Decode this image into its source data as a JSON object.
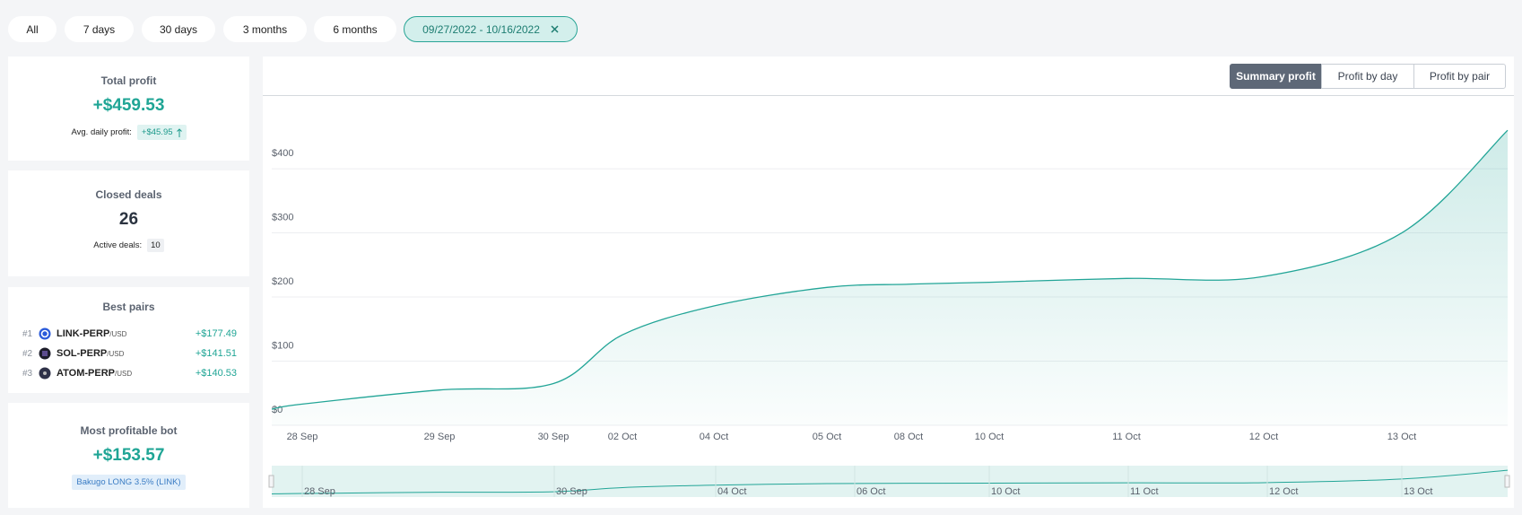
{
  "filters": [
    "All",
    "7 days",
    "30 days",
    "3 months",
    "6 months"
  ],
  "active_range": "09/27/2022 - 10/16/2022",
  "total_profit": {
    "title": "Total profit",
    "value": "+$459.53",
    "avg_label": "Avg. daily profit:",
    "avg_value": "+$45.95"
  },
  "closed_deals": {
    "title": "Closed deals",
    "value": "26",
    "active_label": "Active deals:",
    "active_value": "10"
  },
  "best_pairs": {
    "title": "Best pairs",
    "rows": [
      {
        "rank": "#1",
        "pair": "LINK-PERP",
        "quote": "/USD",
        "profit": "+$177.49"
      },
      {
        "rank": "#2",
        "pair": "SOL-PERP",
        "quote": "/USD",
        "profit": "+$141.51"
      },
      {
        "rank": "#3",
        "pair": "ATOM-PERP",
        "quote": "/USD",
        "profit": "+$140.53"
      }
    ]
  },
  "best_bot": {
    "title": "Most profitable bot",
    "value": "+$153.57",
    "name": "Bakugo LONG 3.5% (LINK)"
  },
  "tabs": [
    "Summary profit",
    "Profit by day",
    "Profit by pair"
  ],
  "chart_data": {
    "type": "area",
    "categories": [
      null,
      "28 Sep",
      "29 Sep",
      "30 Sep",
      "02 Oct",
      "04 Oct",
      "05 Oct",
      "08 Oct",
      "10 Oct",
      "11 Oct",
      "12 Oct",
      "13 Oct",
      null
    ],
    "values": [
      25,
      33,
      55,
      65,
      141,
      186,
      215,
      220,
      223,
      229,
      232,
      300,
      460
    ],
    "color": "#22a597",
    "ylim": [
      0,
      512
    ],
    "yticks": [
      {
        "value": 0,
        "label": "$0"
      },
      {
        "value": 100,
        "label": "$100"
      },
      {
        "value": 200,
        "label": "$200"
      },
      {
        "value": 300,
        "label": "$300"
      },
      {
        "value": 400,
        "label": "$400"
      }
    ],
    "grid": true,
    "navigator_labels": [
      "28 Sep",
      "30 Sep",
      "04 Oct",
      "06 Oct",
      "10 Oct",
      "11 Oct",
      "12 Oct",
      "13 Oct"
    ]
  }
}
